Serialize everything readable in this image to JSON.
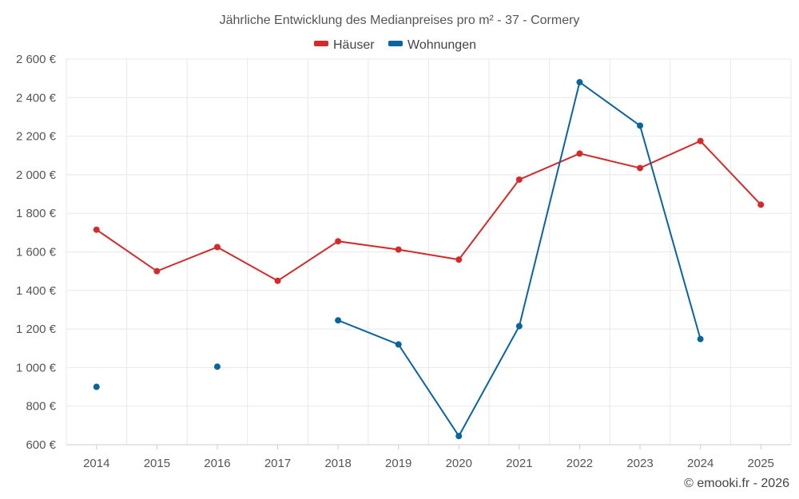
{
  "chart_data": {
    "type": "line",
    "title": "Jährliche Entwicklung des Medianpreises pro m² - 37 - Cormery",
    "categories": [
      "2014",
      "2015",
      "2016",
      "2017",
      "2018",
      "2019",
      "2020",
      "2021",
      "2022",
      "2023",
      "2024",
      "2025"
    ],
    "series": [
      {
        "name": "Häuser",
        "color": "#d42a2a",
        "values": [
          1715,
          1500,
          1625,
          1450,
          1655,
          1612,
          1560,
          1975,
          2110,
          2035,
          2175,
          1845
        ]
      },
      {
        "name": "Wohnungen",
        "color": "#0a649e",
        "values": [
          900,
          null,
          1005,
          null,
          1245,
          1120,
          645,
          1215,
          2480,
          2255,
          1148,
          null
        ]
      }
    ],
    "ylim": [
      600,
      2600
    ],
    "yticks": [
      600,
      800,
      1000,
      1200,
      1400,
      1600,
      1800,
      2000,
      2200,
      2400,
      2600
    ],
    "ytick_labels": [
      "600 €",
      "800 €",
      "1 000 €",
      "1 200 €",
      "1 400 €",
      "1 600 €",
      "1 800 €",
      "2 000 €",
      "2 200 €",
      "2 400 €",
      "2 600 €"
    ],
    "xlabel": "",
    "ylabel": "",
    "grid": true,
    "legend_position": "top-center"
  },
  "credit": "© emooki.fr - 2026"
}
